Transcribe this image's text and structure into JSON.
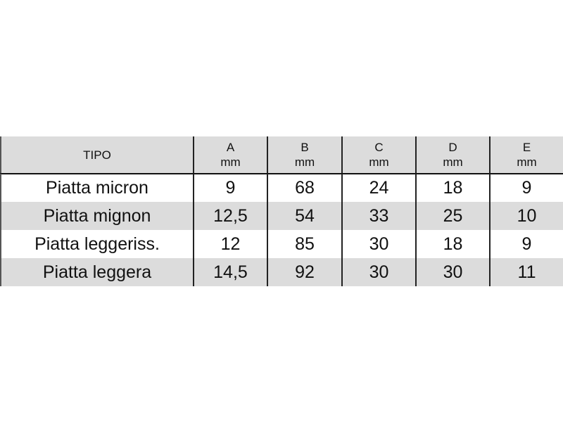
{
  "table": {
    "header": {
      "tipo": "TIPO",
      "columns": [
        {
          "letter": "A",
          "unit": "mm"
        },
        {
          "letter": "B",
          "unit": "mm"
        },
        {
          "letter": "C",
          "unit": "mm"
        },
        {
          "letter": "D",
          "unit": "mm"
        },
        {
          "letter": "E",
          "unit": "mm"
        }
      ]
    },
    "rows": [
      {
        "tipo": "Piatta micron",
        "values": [
          "9",
          "68",
          "24",
          "18",
          "9"
        ]
      },
      {
        "tipo": "Piatta mignon",
        "values": [
          "12,5",
          "54",
          "33",
          "25",
          "10"
        ]
      },
      {
        "tipo": "Piatta leggeriss.",
        "values": [
          "12",
          "85",
          "30",
          "18",
          "9"
        ]
      },
      {
        "tipo": "Piatta leggera",
        "values": [
          "14,5",
          "92",
          "30",
          "30",
          "11"
        ]
      }
    ],
    "colors": {
      "shade": "#dcdcdc",
      "rule": "#111111"
    }
  }
}
